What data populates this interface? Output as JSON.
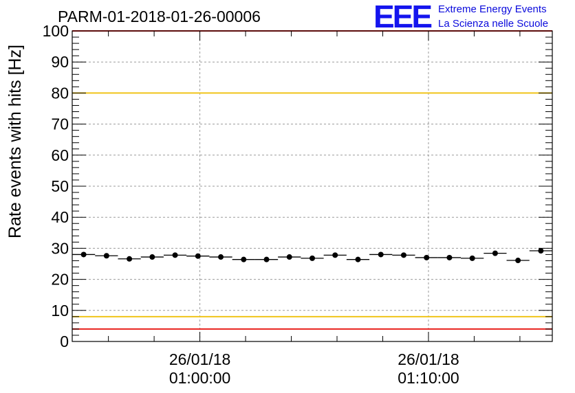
{
  "title": "PARM-01-2018-01-26-00006",
  "logo": {
    "mark": "EEE",
    "line1": "Extreme Energy Events",
    "line2": "La Scienza nelle Scuole",
    "color": "#1515ee"
  },
  "chart_data": {
    "type": "scatter",
    "title": "PARM-01-2018-01-26-00006",
    "ylabel": "Rate events with hits [Hz]",
    "xlabel": "",
    "ylim": [
      0,
      100
    ],
    "yticks": [
      0,
      10,
      20,
      30,
      40,
      50,
      60,
      70,
      80,
      90,
      100
    ],
    "xlim": [
      "26/01/18 00:54:25",
      "26/01/18 01:15:25"
    ],
    "xticks": [
      {
        "date": "26/01/18",
        "time": "01:00:00"
      },
      {
        "date": "26/01/18",
        "time": "01:10:00"
      }
    ],
    "grid": true,
    "bin_width_seconds": 60,
    "points": [
      {
        "x": "00:54:55",
        "y": 28.0
      },
      {
        "x": "00:55:55",
        "y": 27.6
      },
      {
        "x": "00:56:55",
        "y": 26.6
      },
      {
        "x": "00:57:55",
        "y": 27.2
      },
      {
        "x": "00:58:55",
        "y": 27.8
      },
      {
        "x": "00:59:55",
        "y": 27.5
      },
      {
        "x": "01:00:55",
        "y": 27.2
      },
      {
        "x": "01:01:55",
        "y": 26.4
      },
      {
        "x": "01:02:55",
        "y": 26.4
      },
      {
        "x": "01:03:55",
        "y": 27.2
      },
      {
        "x": "01:04:55",
        "y": 26.8
      },
      {
        "x": "01:05:55",
        "y": 27.8
      },
      {
        "x": "01:06:55",
        "y": 26.4
      },
      {
        "x": "01:07:55",
        "y": 28.0
      },
      {
        "x": "01:08:55",
        "y": 27.8
      },
      {
        "x": "01:09:55",
        "y": 27.0
      },
      {
        "x": "01:10:55",
        "y": 27.0
      },
      {
        "x": "01:11:55",
        "y": 26.8
      },
      {
        "x": "01:12:55",
        "y": 28.4
      },
      {
        "x": "01:13:55",
        "y": 26.1
      },
      {
        "x": "01:14:55",
        "y": 29.2
      }
    ],
    "reference_lines": [
      {
        "y": 100,
        "color": "#e8201c"
      },
      {
        "y": 80,
        "color": "#f0c419"
      },
      {
        "y": 8,
        "color": "#f0c419"
      },
      {
        "y": 4,
        "color": "#e8201c"
      }
    ]
  }
}
